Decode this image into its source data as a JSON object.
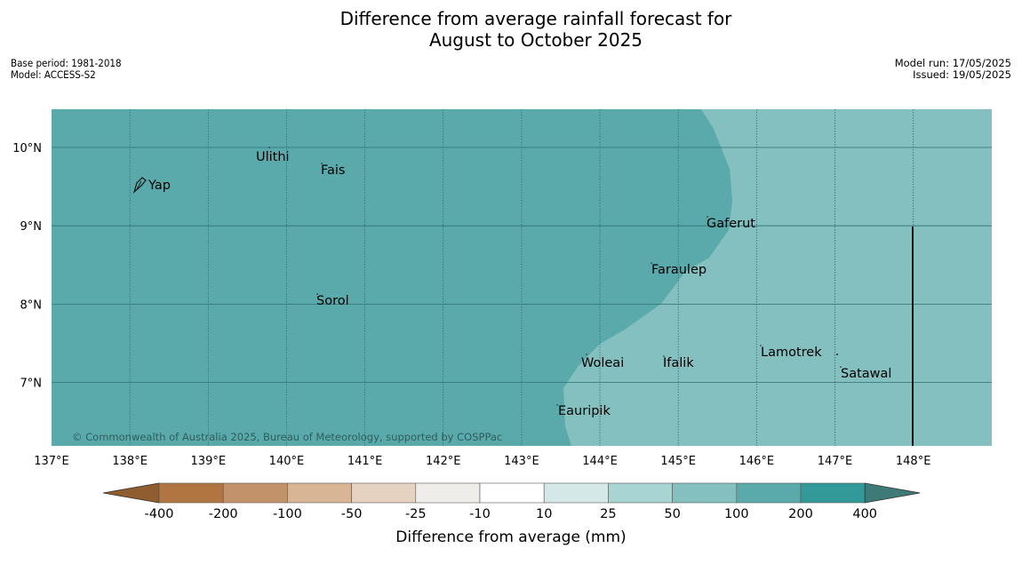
{
  "title": {
    "line1": "Difference from average rainfall forecast for",
    "line2": "August to October 2025"
  },
  "meta": {
    "base_period": "Base period: 1981-2018",
    "model": "Model: ACCESS-S2",
    "model_run": "Model run: 17/05/2025",
    "issued": "Issued: 19/05/2025"
  },
  "map": {
    "lon_range": [
      137,
      149
    ],
    "lat_range": [
      6.2,
      10.5
    ],
    "lon_ticks": [
      "137°E",
      "138°E",
      "139°E",
      "140°E",
      "141°E",
      "142°E",
      "143°E",
      "144°E",
      "145°E",
      "146°E",
      "147°E",
      "148°E"
    ],
    "lat_ticks": [
      "10°N",
      "9°N",
      "8°N",
      "7°N"
    ],
    "colors": {
      "region_100_200": "#5aaaac",
      "region_50_100": "#84c0bf",
      "gridline": "#2e6f72"
    },
    "places": [
      {
        "name": "Ulithi"
      },
      {
        "name": "Fais"
      },
      {
        "name": "Yap"
      },
      {
        "name": "Gaferut"
      },
      {
        "name": "Faraulep"
      },
      {
        "name": "Sorol"
      },
      {
        "name": "Lamotrek"
      },
      {
        "name": "Satawal"
      },
      {
        "name": "Woleai"
      },
      {
        "name": "Ifalik"
      },
      {
        "name": "Eauripik"
      }
    ],
    "copyright": "© Commonwealth of Australia 2025, Bureau of Meteorology, supported by COSPPac"
  },
  "legend": {
    "title": "Difference from average (mm)",
    "tick_labels": [
      "-400",
      "-200",
      "-100",
      "-50",
      "-25",
      "-10",
      "10",
      "25",
      "50",
      "100",
      "200",
      "400"
    ],
    "colors": [
      "#8f5d2e",
      "#b07540",
      "#c2926a",
      "#d7b595",
      "#e5d2c0",
      "#efede9",
      "#ffffff",
      "#d3e8e7",
      "#a8d4d3",
      "#84c0bf",
      "#5aaaac",
      "#339998",
      "#3e7a77"
    ]
  }
}
